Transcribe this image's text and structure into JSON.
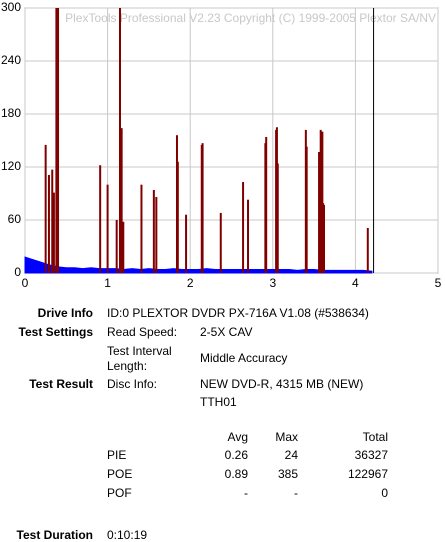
{
  "chart_data": {
    "type": "spikes",
    "watermark": "PlexTools Professional V2.23 Copyright (C) 1999-2005 Plextor SA/NV",
    "xlim": [
      0,
      5
    ],
    "xticks": [
      0,
      1,
      2,
      3,
      4,
      5
    ],
    "ylim": [
      0,
      300
    ],
    "yticks": [
      0,
      60,
      120,
      180,
      240,
      300
    ],
    "grid": true,
    "end_line": {
      "x": 4.22,
      "color": "#000000"
    },
    "series": [
      {
        "name": "PIE",
        "color": "#0000ff",
        "style": "area",
        "x": [
          0,
          0.1,
          0.2,
          0.3,
          0.4,
          0.5,
          0.6,
          0.7,
          0.8,
          0.9,
          1,
          1.1,
          1.2,
          1.3,
          1.4,
          1.5,
          1.6,
          1.7,
          1.8,
          1.9,
          2,
          2.1,
          2.2,
          2.3,
          2.4,
          2.5,
          2.6,
          2.7,
          2.8,
          2.9,
          3,
          3.1,
          3.2,
          3.3,
          3.4,
          3.5,
          3.6,
          3.7,
          3.8,
          3.9,
          4,
          4.1,
          4.2
        ],
        "values": [
          18,
          15,
          12,
          9,
          7,
          6,
          6,
          5,
          6,
          5,
          5,
          5,
          4,
          5,
          4,
          5,
          4,
          4,
          5,
          4,
          4,
          4,
          5,
          4,
          4,
          4,
          4,
          4,
          4,
          4,
          4,
          4,
          4,
          3,
          4,
          4,
          3,
          3,
          3,
          3,
          3,
          3,
          2
        ]
      },
      {
        "name": "POE",
        "color": "#800000",
        "style": "spikes",
        "x": [
          0.25,
          0.29,
          0.33,
          0.35,
          0.38,
          0.4,
          0.91,
          1.0,
          1.11,
          1.15,
          1.17,
          1.19,
          1.41,
          1.56,
          1.59,
          1.84,
          1.85,
          1.95,
          2.14,
          2.15,
          2.37,
          2.64,
          2.7,
          2.91,
          2.92,
          3.04,
          3.05,
          3.06,
          3.4,
          3.41,
          3.56,
          3.58,
          3.6,
          3.61,
          3.62,
          4.15
        ],
        "values": [
          145,
          111,
          117,
          91,
          300,
          300,
          122,
          100,
          60,
          300,
          164,
          58,
          100,
          94,
          86,
          156,
          126,
          66,
          145,
          147,
          68,
          103,
          83,
          147,
          154,
          162,
          165,
          124,
          162,
          143,
          137,
          162,
          160,
          79,
          77,
          51
        ]
      }
    ]
  },
  "info": {
    "drive_info": {
      "label": "Drive Info",
      "value": "ID:0 PLEXTOR DVDR PX-716A V1.08 (#538634)"
    },
    "test_settings": {
      "label": "Test Settings",
      "rows": [
        [
          "Read Speed:",
          "2-5X CAV"
        ],
        [
          "Test Interval",
          "Length:",
          "Middle Accuracy"
        ]
      ]
    },
    "test_result": {
      "label": "Test Result",
      "disc_label": "Disc Info:",
      "disc_lines": [
        "NEW DVD-R, 4315 MB (NEW)",
        "TTH01"
      ]
    },
    "table": {
      "header": [
        "Avg",
        "Max",
        "Total"
      ],
      "rows": [
        [
          "PIE",
          "0.26",
          "24",
          "36327"
        ],
        [
          "POE",
          "0.89",
          "385",
          "122967"
        ],
        [
          "POF",
          "-",
          "-",
          "0"
        ]
      ]
    },
    "test_duration": {
      "label": "Test Duration",
      "value": "0:10:19"
    }
  }
}
